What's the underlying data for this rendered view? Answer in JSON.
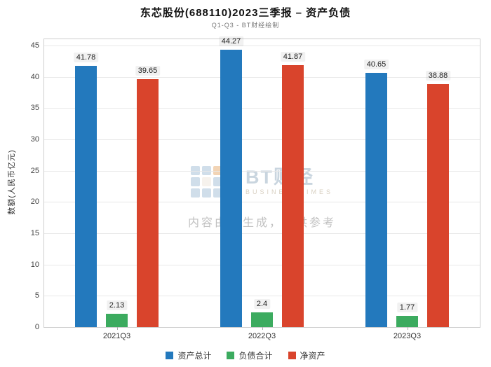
{
  "title": "东芯股份(688110)2023三季报 – 资产负债",
  "subtitle": "Q1-Q3 - BT财经绘制",
  "watermark": {
    "logo_name": "BT财经",
    "logo_sub": "BUSINESSTIMES",
    "disclaimer": "内容由AI生成，仅供参考"
  },
  "chart_data": {
    "type": "bar",
    "title": "东芯股份(688110)2023三季报 – 资产负债",
    "subtitle": "Q1-Q3 - BT财经绘制",
    "xlabel": "",
    "ylabel": "数额(人民币亿元)",
    "categories": [
      "2021Q3",
      "2022Q3",
      "2023Q3"
    ],
    "series": [
      {
        "name": "资产总计",
        "color": "#2379bd",
        "values": [
          41.78,
          44.27,
          40.65
        ]
      },
      {
        "name": "负债合计",
        "color": "#3cab5f",
        "values": [
          2.13,
          2.4,
          1.77
        ]
      },
      {
        "name": "净资产",
        "color": "#d9442c",
        "values": [
          39.65,
          41.87,
          38.88
        ]
      }
    ],
    "ylim": [
      0,
      45
    ],
    "yticks": [
      0,
      5,
      10,
      15,
      20,
      25,
      30,
      35,
      40,
      45
    ],
    "grid": true,
    "legend_position": "bottom",
    "colors": {
      "grid": "#e8e8e8",
      "axis_border": "#cfcfcf",
      "tick_text": "#444444"
    }
  }
}
